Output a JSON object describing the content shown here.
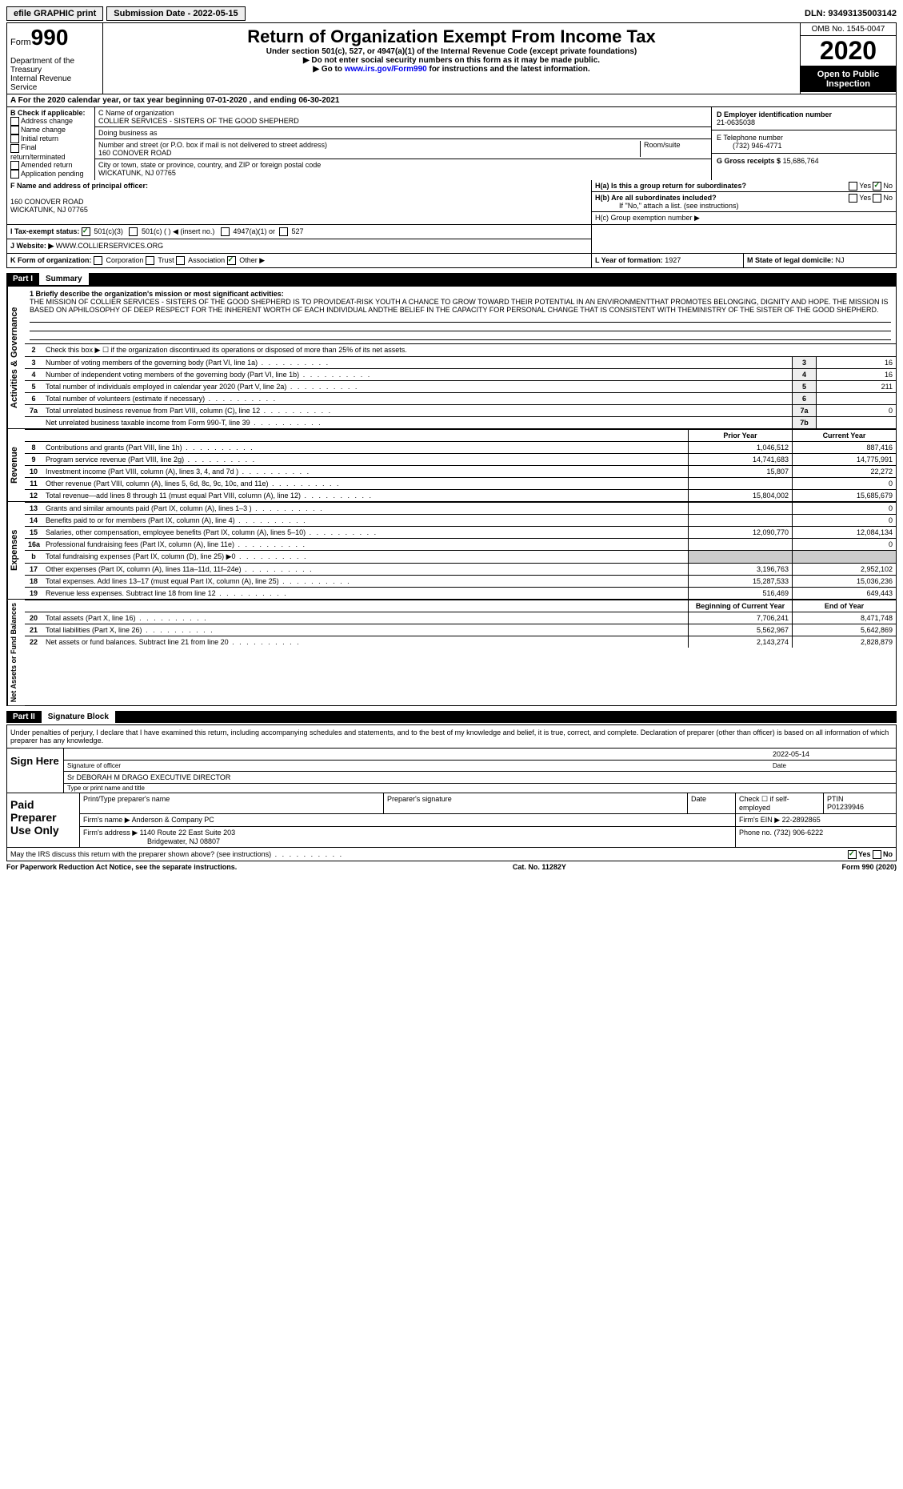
{
  "top": {
    "efile": "efile GRAPHIC print",
    "submission": "Submission Date - 2022-05-15",
    "dln": "DLN: 93493135003142"
  },
  "header": {
    "form_label": "Form",
    "form_num": "990",
    "dept": "Department of the Treasury\nInternal Revenue Service",
    "title": "Return of Organization Exempt From Income Tax",
    "subtitle": "Under section 501(c), 527, or 4947(a)(1) of the Internal Revenue Code (except private foundations)",
    "note1": "▶ Do not enter social security numbers on this form as it may be made public.",
    "note2_pre": "▶ Go to ",
    "note2_link": "www.irs.gov/Form990",
    "note2_post": " for instructions and the latest information.",
    "omb": "OMB No. 1545-0047",
    "year": "2020",
    "open": "Open to Public Inspection"
  },
  "rowA": "A For the 2020 calendar year, or tax year beginning 07-01-2020   , and ending 06-30-2021",
  "B": {
    "title": "B Check if applicable:",
    "items": [
      "Address change",
      "Name change",
      "Initial return",
      "Final return/terminated",
      "Amended return",
      "Application pending"
    ]
  },
  "C": {
    "name_label": "C Name of organization",
    "name": "COLLIER SERVICES - SISTERS OF THE GOOD SHEPHERD",
    "dba_label": "Doing business as",
    "street_label": "Number and street (or P.O. box if mail is not delivered to street address)",
    "street": "160 CONOVER ROAD",
    "room_label": "Room/suite",
    "city_label": "City or town, state or province, country, and ZIP or foreign postal code",
    "city": "WICKATUNK, NJ  07765"
  },
  "D": {
    "label": "D Employer identification number",
    "val": "21-0635038"
  },
  "E": {
    "label": "E Telephone number",
    "val": "(732) 946-4771"
  },
  "G": {
    "label": "G Gross receipts $",
    "val": "15,686,764"
  },
  "F": {
    "label": "F  Name and address of principal officer:",
    "addr1": "160 CONOVER ROAD",
    "addr2": "WICKATUNK, NJ  07765"
  },
  "H": {
    "a": "H(a)  Is this a group return for subordinates?",
    "b": "H(b)  Are all subordinates included?",
    "b2": "If \"No,\" attach a list. (see instructions)",
    "c": "H(c)  Group exemption number ▶"
  },
  "I": {
    "label": "I   Tax-exempt status:",
    "opts": [
      "501(c)(3)",
      "501(c) (  ) ◀ (insert no.)",
      "4947(a)(1) or",
      "527"
    ]
  },
  "J": {
    "label": "J  Website: ▶",
    "val": "WWW.COLLIERSERVICES.ORG"
  },
  "K": {
    "label": "K Form of organization:",
    "opts": [
      "Corporation",
      "Trust",
      "Association",
      "Other ▶"
    ]
  },
  "L": {
    "label": "L Year of formation:",
    "val": "1927"
  },
  "M": {
    "label": "M State of legal domicile:",
    "val": "NJ"
  },
  "part1": {
    "num": "Part I",
    "title": "Summary"
  },
  "mission_label": "1   Briefly describe the organization's mission or most significant activities:",
  "mission": "THE MISSION OF COLLIER SERVICES - SISTERS OF THE GOOD SHEPHERD IS TO PROVIDEAT-RISK YOUTH A CHANCE TO GROW TOWARD THEIR POTENTIAL IN AN ENVIRONMENTTHAT PROMOTES BELONGING, DIGNITY AND HOPE. THE MISSION IS BASED ON APHILOSOPHY OF DEEP RESPECT FOR THE INHERENT WORTH OF EACH INDIVIDUAL ANDTHE BELIEF IN THE CAPACITY FOR PERSONAL CHANGE THAT IS CONSISTENT WITH THEMINISTRY OF THE SISTER OF THE GOOD SHEPHERD.",
  "gov": {
    "l2": "Check this box ▶ ☐  if the organization discontinued its operations or disposed of more than 25% of its net assets.",
    "rows": [
      {
        "n": "3",
        "t": "Number of voting members of the governing body (Part VI, line 1a)",
        "b": "3",
        "v": "16"
      },
      {
        "n": "4",
        "t": "Number of independent voting members of the governing body (Part VI, line 1b)",
        "b": "4",
        "v": "16"
      },
      {
        "n": "5",
        "t": "Total number of individuals employed in calendar year 2020 (Part V, line 2a)",
        "b": "5",
        "v": "211"
      },
      {
        "n": "6",
        "t": "Total number of volunteers (estimate if necessary)",
        "b": "6",
        "v": ""
      },
      {
        "n": "7a",
        "t": "Total unrelated business revenue from Part VIII, column (C), line 12",
        "b": "7a",
        "v": "0"
      },
      {
        "n": "",
        "t": "Net unrelated business taxable income from Form 990-T, line 39",
        "b": "7b",
        "v": ""
      }
    ]
  },
  "heads": {
    "prior": "Prior Year",
    "current": "Current Year"
  },
  "revenue": [
    {
      "n": "8",
      "t": "Contributions and grants (Part VIII, line 1h)",
      "p": "1,046,512",
      "c": "887,416"
    },
    {
      "n": "9",
      "t": "Program service revenue (Part VIII, line 2g)",
      "p": "14,741,683",
      "c": "14,775,991"
    },
    {
      "n": "10",
      "t": "Investment income (Part VIII, column (A), lines 3, 4, and 7d )",
      "p": "15,807",
      "c": "22,272"
    },
    {
      "n": "11",
      "t": "Other revenue (Part VIII, column (A), lines 5, 6d, 8c, 9c, 10c, and 11e)",
      "p": "",
      "c": "0"
    },
    {
      "n": "12",
      "t": "Total revenue—add lines 8 through 11 (must equal Part VIII, column (A), line 12)",
      "p": "15,804,002",
      "c": "15,685,679"
    }
  ],
  "expenses": [
    {
      "n": "13",
      "t": "Grants and similar amounts paid (Part IX, column (A), lines 1–3 )",
      "p": "",
      "c": "0"
    },
    {
      "n": "14",
      "t": "Benefits paid to or for members (Part IX, column (A), line 4)",
      "p": "",
      "c": "0"
    },
    {
      "n": "15",
      "t": "Salaries, other compensation, employee benefits (Part IX, column (A), lines 5–10)",
      "p": "12,090,770",
      "c": "12,084,134"
    },
    {
      "n": "16a",
      "t": "Professional fundraising fees (Part IX, column (A), line 11e)",
      "p": "",
      "c": "0"
    },
    {
      "n": "b",
      "t": "Total fundraising expenses (Part IX, column (D), line 25) ▶0",
      "p": "—",
      "c": "—"
    },
    {
      "n": "17",
      "t": "Other expenses (Part IX, column (A), lines 11a–11d, 11f–24e)",
      "p": "3,196,763",
      "c": "2,952,102"
    },
    {
      "n": "18",
      "t": "Total expenses. Add lines 13–17 (must equal Part IX, column (A), line 25)",
      "p": "15,287,533",
      "c": "15,036,236"
    },
    {
      "n": "19",
      "t": "Revenue less expenses. Subtract line 18 from line 12",
      "p": "516,469",
      "c": "649,443"
    }
  ],
  "heads2": {
    "prior": "Beginning of Current Year",
    "current": "End of Year"
  },
  "net": [
    {
      "n": "20",
      "t": "Total assets (Part X, line 16)",
      "p": "7,706,241",
      "c": "8,471,748"
    },
    {
      "n": "21",
      "t": "Total liabilities (Part X, line 26)",
      "p": "5,562,967",
      "c": "5,642,869"
    },
    {
      "n": "22",
      "t": "Net assets or fund balances. Subtract line 21 from line 20",
      "p": "2,143,274",
      "c": "2,828,879"
    }
  ],
  "part2": {
    "num": "Part II",
    "title": "Signature Block"
  },
  "sig_text": "Under penalties of perjury, I declare that I have examined this return, including accompanying schedules and statements, and to the best of my knowledge and belief, it is true, correct, and complete. Declaration of preparer (other than officer) is based on all information of which preparer has any knowledge.",
  "sign": {
    "here": "Sign Here",
    "officer": "Signature of officer",
    "date": "Date",
    "date_val": "2022-05-14",
    "name": "Sr DEBORAH M DRAGO  EXECUTIVE DIRECTOR",
    "name_label": "Type or print name and title"
  },
  "prep": {
    "label": "Paid Preparer Use Only",
    "h": [
      "Print/Type preparer's name",
      "Preparer's signature",
      "Date",
      "Check ☐ if self-employed",
      "PTIN"
    ],
    "ptin": "P01239946",
    "firm_name_l": "Firm's name    ▶",
    "firm_name": "Anderson & Company PC",
    "firm_ein_l": "Firm's EIN ▶",
    "firm_ein": "22-2892865",
    "firm_addr_l": "Firm's address ▶",
    "firm_addr": "1140 Route 22 East Suite 203",
    "firm_addr2": "Bridgewater, NJ  08807",
    "phone_l": "Phone no.",
    "phone": "(732) 906-6222"
  },
  "may_discuss": "May the IRS discuss this return with the preparer shown above? (see instructions)",
  "footer": {
    "l": "For Paperwork Reduction Act Notice, see the separate instructions.",
    "m": "Cat. No. 11282Y",
    "r": "Form 990 (2020)"
  },
  "side": {
    "gov": "Activities & Governance",
    "rev": "Revenue",
    "exp": "Expenses",
    "net": "Net Assets or Fund Balances"
  }
}
